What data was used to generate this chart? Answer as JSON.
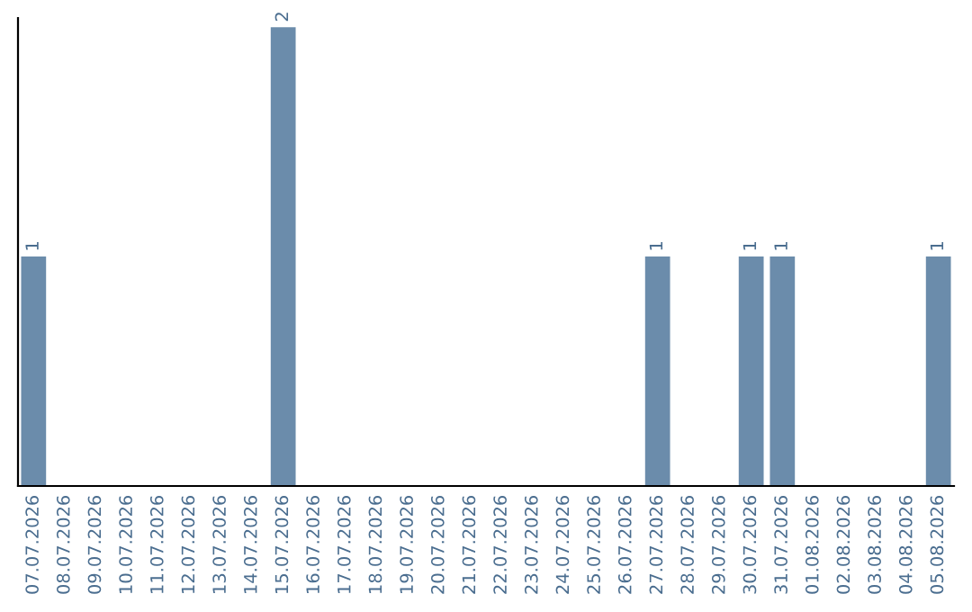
{
  "chart_data": {
    "type": "bar",
    "categories": [
      "07.07.2026",
      "08.07.2026",
      "09.07.2026",
      "10.07.2026",
      "11.07.2026",
      "12.07.2026",
      "13.07.2026",
      "14.07.2026",
      "15.07.2026",
      "16.07.2026",
      "17.07.2026",
      "18.07.2026",
      "19.07.2026",
      "20.07.2026",
      "21.07.2026",
      "22.07.2026",
      "23.07.2026",
      "24.07.2026",
      "25.07.2026",
      "26.07.2026",
      "27.07.2026",
      "28.07.2026",
      "29.07.2026",
      "30.07.2026",
      "31.07.2026",
      "01.08.2026",
      "02.08.2026",
      "03.08.2026",
      "04.08.2026",
      "05.08.2026"
    ],
    "values": [
      1,
      0,
      0,
      0,
      0,
      0,
      0,
      0,
      2,
      0,
      0,
      0,
      0,
      0,
      0,
      0,
      0,
      0,
      0,
      0,
      1,
      0,
      0,
      1,
      1,
      0,
      0,
      0,
      0,
      1
    ],
    "value_labels": [
      "1",
      null,
      null,
      null,
      null,
      null,
      null,
      null,
      "2",
      null,
      null,
      null,
      null,
      null,
      null,
      null,
      null,
      null,
      null,
      null,
      "1",
      null,
      null,
      "1",
      "1",
      null,
      null,
      null,
      null,
      "1"
    ],
    "color": "#6b8cab",
    "ylim": [
      0,
      2.04
    ],
    "tick_labels": "x",
    "grid": false
  }
}
